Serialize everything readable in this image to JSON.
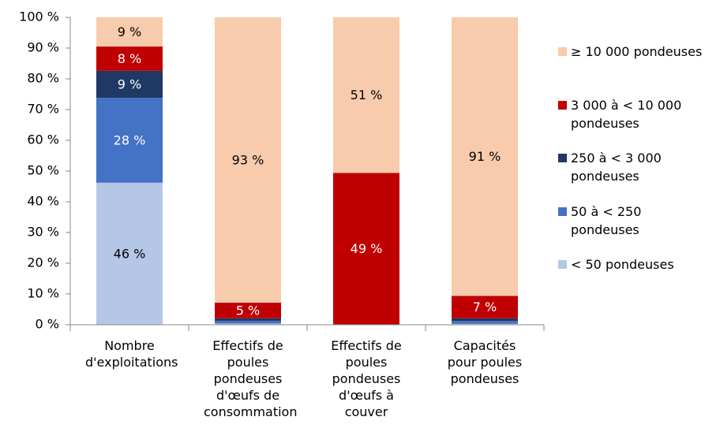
{
  "chart_data": {
    "type": "stacked_bar",
    "categories": [
      "Nombre d'exploitations",
      "Effectifs de poules pondeuses d'œufs de consommation",
      "Effectifs de poules pondeuses d'œufs à couver",
      "Capacités pour poules pondeuses"
    ],
    "series": [
      {
        "name": "< 50 pondeuses",
        "color": "#b4c7e7",
        "values": [
          46.2,
          0.4,
          0,
          0.3
        ],
        "value_labels": [
          "46 %",
          null,
          null,
          null
        ]
      },
      {
        "name": "50 à < 250 pondeuses",
        "color": "#4472c4",
        "values": [
          27.6,
          0.9,
          0,
          0.9
        ],
        "value_labels": [
          "28 %",
          null,
          null,
          null
        ]
      },
      {
        "name": "250 à < 3 000 pondeuses",
        "color": "#1f3864",
        "values": [
          8.8,
          0.8,
          0,
          0.9
        ],
        "value_labels": [
          "9 %",
          null,
          null,
          null
        ]
      },
      {
        "name": "3 000 à < 10 000 pondeuses",
        "color": "#c00000",
        "values": [
          7.9,
          5.1,
          49.4,
          7.3
        ],
        "value_labels": [
          "8 %",
          "5 %",
          "49 %",
          "7 %"
        ]
      },
      {
        "name": "≥ 10 000 pondeuses",
        "color": "#f8cbad",
        "values": [
          9.5,
          92.8,
          50.6,
          90.6
        ],
        "value_labels": [
          "9 %",
          "93 %",
          "51 %",
          "91 %"
        ]
      }
    ],
    "ylim": [
      0,
      100
    ],
    "yticks": [
      {
        "value": 0,
        "label": "0 %"
      },
      {
        "value": 10,
        "label": "10 %"
      },
      {
        "value": 20,
        "label": "20 %"
      },
      {
        "value": 30,
        "label": "30 %"
      },
      {
        "value": 40,
        "label": "40 %"
      },
      {
        "value": 50,
        "label": "50 %"
      },
      {
        "value": 60,
        "label": "60 %"
      },
      {
        "value": 70,
        "label": "70 %"
      },
      {
        "value": 80,
        "label": "80 %"
      },
      {
        "value": 90,
        "label": "90 %"
      },
      {
        "value": 100,
        "label": "100 %"
      }
    ],
    "grid": false,
    "legend": "right"
  }
}
